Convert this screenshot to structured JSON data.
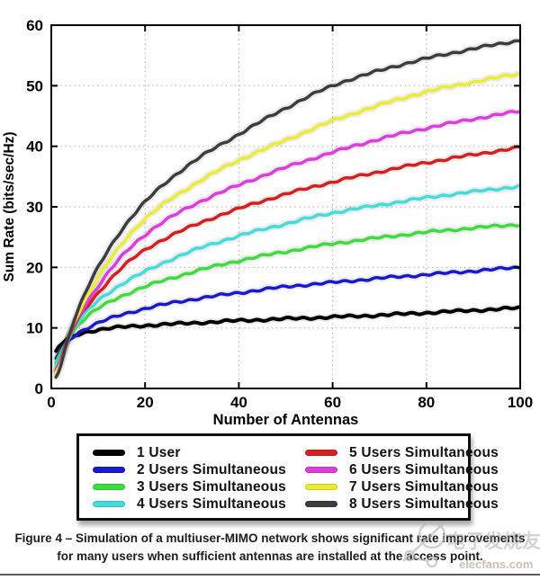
{
  "chart_data": {
    "type": "line",
    "title": "",
    "xlabel": "Number of Antennas",
    "ylabel": "Sum Rate (bits/sec/Hz)",
    "xlim": [
      0,
      100
    ],
    "ylim": [
      0,
      60
    ],
    "xticks": [
      0,
      20,
      40,
      60,
      80,
      100
    ],
    "yticks": [
      0,
      10,
      20,
      30,
      40,
      50,
      60
    ],
    "grid": true,
    "legend_position": "below-chart-boxed",
    "x": [
      1,
      2,
      5,
      10,
      20,
      30,
      40,
      50,
      60,
      70,
      80,
      90,
      100
    ],
    "series": [
      {
        "name": "1 User",
        "color": "#000000",
        "values": [
          6.0,
          7.2,
          8.7,
          9.7,
          10.4,
          10.8,
          11.2,
          11.5,
          11.8,
          12.1,
          12.5,
          12.9,
          13.3
        ]
      },
      {
        "name": "2 Users Simultaneous",
        "color": "#1a1acc",
        "values": [
          5.0,
          6.3,
          8.8,
          10.8,
          13.2,
          14.7,
          15.8,
          16.8,
          17.5,
          18.2,
          18.8,
          19.4,
          20.0
        ]
      },
      {
        "name": "3 Users Simultaneous",
        "color": "#3ddd3d",
        "values": [
          4.3,
          5.8,
          9.8,
          13.2,
          16.8,
          19.2,
          21.1,
          22.6,
          23.9,
          24.9,
          25.8,
          26.5,
          27.1
        ]
      },
      {
        "name": "4 Users Simultaneous",
        "color": "#45dcdc",
        "values": [
          3.7,
          5.3,
          10.2,
          14.5,
          19.3,
          22.7,
          25.2,
          27.2,
          29.0,
          30.3,
          31.5,
          32.5,
          33.4
        ]
      },
      {
        "name": "5 Users Simultaneous",
        "color": "#d42020",
        "values": [
          3.2,
          4.8,
          10.5,
          15.8,
          22.9,
          26.8,
          29.7,
          32.1,
          34.1,
          35.8,
          37.3,
          38.6,
          39.8
        ]
      },
      {
        "name": "6 Users Simultaneous",
        "color": "#dd3ddd",
        "values": [
          2.8,
          4.4,
          10.8,
          16.9,
          25.4,
          30.2,
          33.6,
          36.5,
          39.0,
          41.2,
          43.0,
          44.5,
          45.8
        ]
      },
      {
        "name": "7 Users Simultaneous",
        "color": "#ecec30",
        "values": [
          2.4,
          4.1,
          11.2,
          18.3,
          28.0,
          33.5,
          37.7,
          41.0,
          44.2,
          46.8,
          49.0,
          50.6,
          52.0
        ]
      },
      {
        "name": "8 Users Simultaneous",
        "color": "#3d3d3d",
        "values": [
          2.0,
          3.8,
          11.6,
          20.0,
          30.8,
          37.3,
          42.0,
          46.3,
          50.0,
          52.5,
          54.5,
          56.1,
          57.5
        ]
      }
    ]
  },
  "caption": {
    "line1": "Figure 4 – Simulation of a multiuser-MIMO network shows significant rate improvements",
    "line2": "for many users when sufficient antennas are installed at the access point."
  },
  "watermark": {
    "cn_text": "电子发烧友",
    "site_text": "elecfans.com"
  },
  "colors": {
    "grid": "#b0b0b0",
    "axis": "#000000",
    "caption_text": "#1c1c1c",
    "watermark_gray": "#b8b8b8"
  }
}
